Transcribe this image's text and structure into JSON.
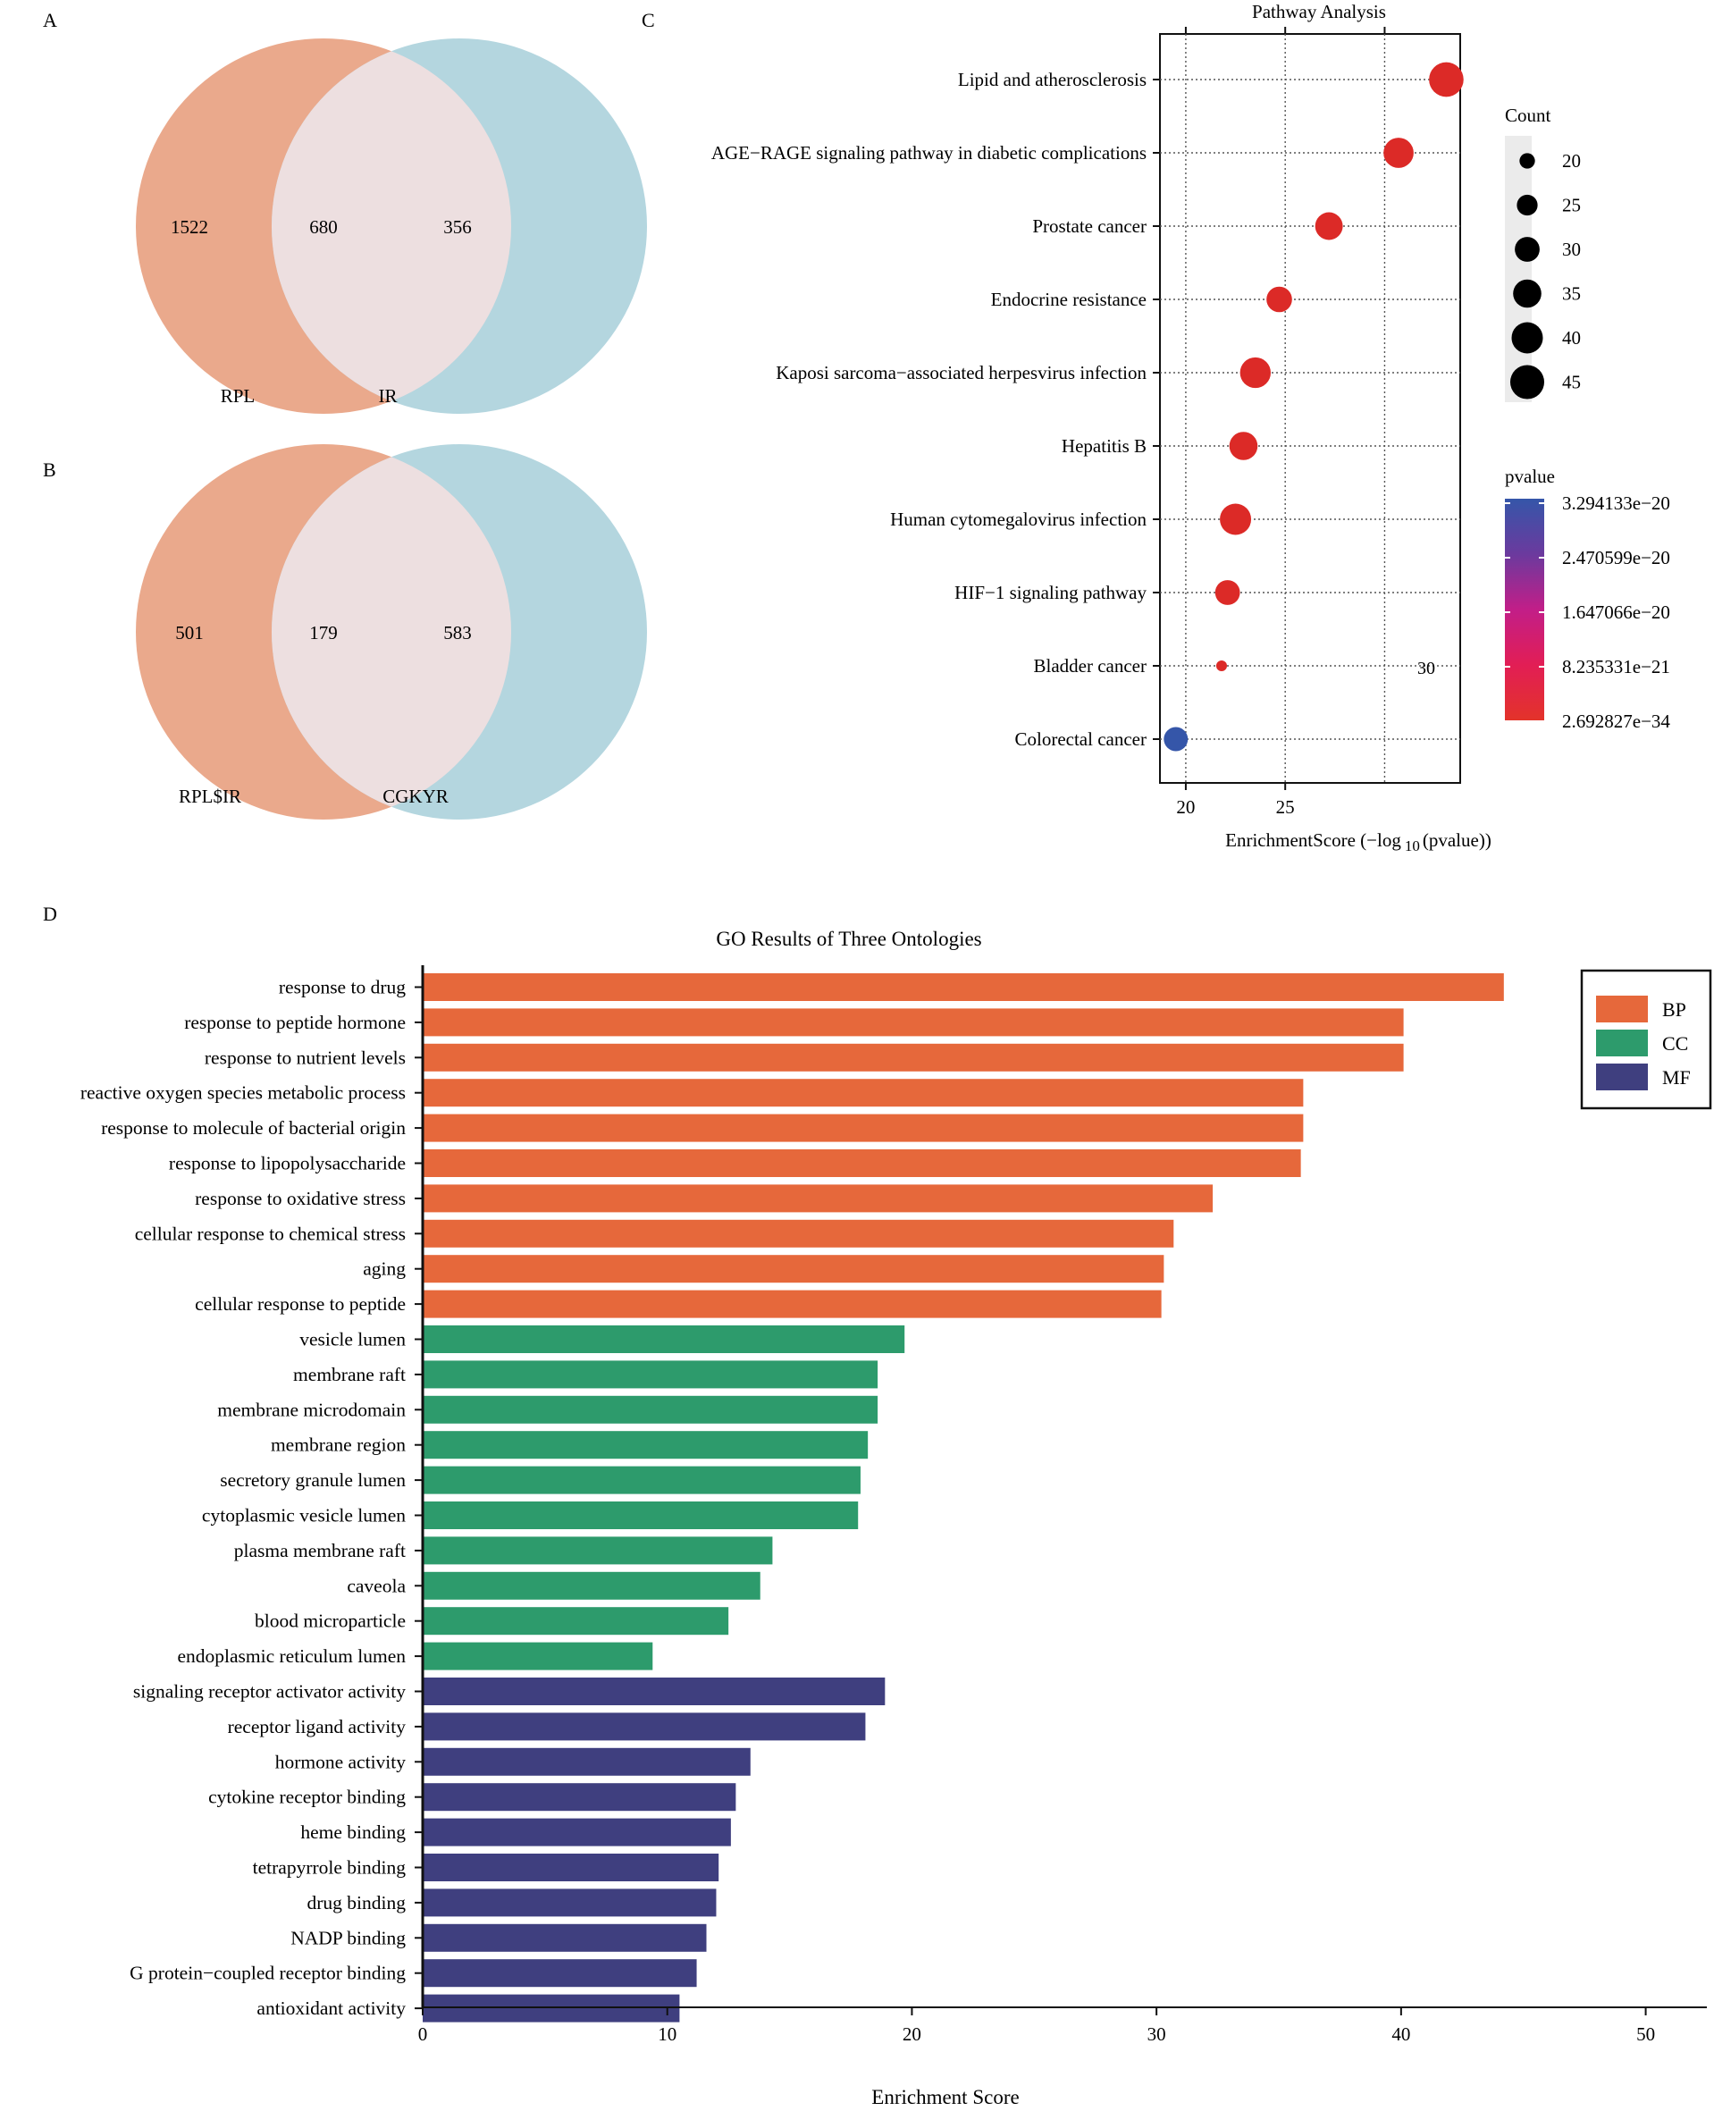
{
  "panels": {
    "A": {
      "letter": "A"
    },
    "B": {
      "letter": "B"
    },
    "C": {
      "letter": "C"
    },
    "D": {
      "letter": "D"
    }
  },
  "chart_data": [
    {
      "type": "venn",
      "panel": "A",
      "sets": [
        "RPL",
        "IR"
      ],
      "left_only": "1522",
      "intersection": "680",
      "right_only": "356",
      "colors": {
        "left": "#eaa98c",
        "right": "#b4d6df",
        "overlap": "#eddfe0"
      }
    },
    {
      "type": "venn",
      "panel": "B",
      "sets": [
        "RPL$IR",
        "CGKYR"
      ],
      "left_only": "501",
      "intersection": "179",
      "right_only": "583",
      "colors": {
        "left": "#eaa98c",
        "right": "#b4d6df",
        "overlap": "#eddfe0"
      }
    },
    {
      "type": "scatter",
      "panel": "C",
      "title": "Pathway Analysis",
      "xlabel": "EnrichmentScore (−log",
      "xlabel_sub": "10",
      "xlabel_end": "(pvalue))",
      "xticks": [
        "20",
        "25"
      ],
      "xlim": [
        18.7,
        33.8
      ],
      "stray_label": "30",
      "categories": [
        "Lipid and atherosclerosis",
        "AGE−RAGE signaling pathway in diabetic complications",
        "Prostate cancer",
        "Endocrine resistance",
        "Kaposi sarcoma−associated herpesvirus infection",
        "Hepatitis B",
        "Human cytomegalovirus infection",
        "HIF−1 signaling pathway",
        "Bladder cancer",
        "Colorectal cancer"
      ],
      "x": [
        33.1,
        30.7,
        27.2,
        24.7,
        23.5,
        22.9,
        22.5,
        22.1,
        21.8,
        19.5
      ],
      "count": [
        46,
        38,
        34,
        31,
        39,
        35,
        40,
        30,
        17,
        29
      ],
      "color": [
        "#dc2a27",
        "#dc2a27",
        "#dc2a27",
        "#dc2a27",
        "#dc2a27",
        "#dc2a27",
        "#dc2a27",
        "#dc2a27",
        "#dc2a27",
        "#3556a9"
      ],
      "size_legend": {
        "title": "Count",
        "values": [
          "20",
          "25",
          "30",
          "35",
          "40",
          "45"
        ]
      },
      "color_legend": {
        "title": "pvalue",
        "labels": [
          "3.294133e−20",
          "2.470599e−20",
          "1.647066e−20",
          "8.235331e−21",
          "2.692827e−34"
        ],
        "gradient": [
          "#3556a9",
          "#6b3a9e",
          "#c21e88",
          "#e21e55",
          "#e3332a"
        ]
      }
    },
    {
      "type": "bar",
      "orientation": "horizontal",
      "panel": "D",
      "title": "GO Results of Three Ontologies",
      "xlabel": "Enrichment Score",
      "xlim": [
        0,
        52.5
      ],
      "xticks": [
        0,
        10,
        20,
        30,
        40,
        50
      ],
      "legend": [
        {
          "name": "BP",
          "color": "#e6683b"
        },
        {
          "name": "CC",
          "color": "#2d9b6c"
        },
        {
          "name": "MF",
          "color": "#3f3f7f"
        }
      ],
      "categories": [
        "response to drug",
        "response to peptide hormone",
        "response to nutrient levels",
        "reactive oxygen species metabolic process",
        "response to molecule of bacterial origin",
        "response to lipopolysaccharide",
        "response to oxidative stress",
        "cellular response to chemical stress",
        "aging",
        "cellular response to peptide",
        "vesicle lumen",
        "membrane raft",
        "membrane microdomain",
        "membrane region",
        "secretory granule lumen",
        "cytoplasmic vesicle lumen",
        "plasma membrane raft",
        "caveola",
        "blood microparticle",
        "endoplasmic reticulum lumen",
        "signaling receptor activator activity",
        "receptor ligand activity",
        "hormone activity",
        "cytokine receptor binding",
        "heme binding",
        "tetrapyrrole binding",
        "drug binding",
        "NADP binding",
        "G protein−coupled receptor binding",
        "antioxidant activity"
      ],
      "values": [
        44.2,
        40.1,
        40.1,
        36.0,
        36.0,
        35.9,
        32.3,
        30.7,
        30.3,
        30.2,
        19.7,
        18.6,
        18.6,
        18.2,
        17.9,
        17.8,
        14.3,
        13.8,
        12.5,
        9.4,
        18.9,
        18.1,
        13.4,
        12.8,
        12.6,
        12.1,
        12.0,
        11.6,
        11.2,
        10.5
      ],
      "groups": [
        "BP",
        "BP",
        "BP",
        "BP",
        "BP",
        "BP",
        "BP",
        "BP",
        "BP",
        "BP",
        "CC",
        "CC",
        "CC",
        "CC",
        "CC",
        "CC",
        "CC",
        "CC",
        "CC",
        "CC",
        "MF",
        "MF",
        "MF",
        "MF",
        "MF",
        "MF",
        "MF",
        "MF",
        "MF",
        "MF"
      ]
    }
  ]
}
